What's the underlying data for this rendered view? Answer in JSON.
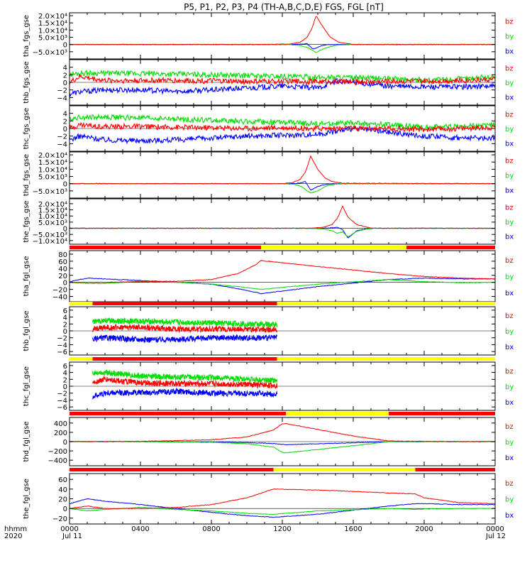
{
  "title": "P5, P1, P2, P3, P4 (TH-A,B,C,D,E) FGS, FGL [nT]",
  "footer": {
    "label_line1": "hhmm",
    "label_line2": "2020",
    "tick_labels": [
      "0000",
      "0400",
      "0800",
      "1200",
      "1600",
      "2000",
      "0000"
    ],
    "date_left": "Jul 11",
    "date_right": "Jul 12"
  },
  "colors": {
    "bx": "#0000ff",
    "by": "#00dd00",
    "bz": "#ff0000",
    "bar_red": "#ff0000",
    "bar_yellow": "#ffff00"
  },
  "chart_data": [
    {
      "id": "p1",
      "type": "line",
      "ylabel": "tha_fgs_gse",
      "ylim": [
        -10000,
        22000
      ],
      "ticks": [
        20000,
        15000,
        10000,
        5000,
        0,
        -5000
      ],
      "tick_labels": [
        "2.0×10⁴",
        "1.5×10⁴",
        "1.0×10⁴",
        "5.0×10³",
        "0",
        "−5.0×10³"
      ],
      "legend": [
        "bz",
        "by",
        "bx"
      ],
      "x_hours": [
        0,
        10.3,
        12.4,
        13.0,
        13.4,
        13.7,
        13.9,
        14.3,
        14.7,
        15.2,
        16.0,
        24
      ],
      "series": [
        {
          "name": "bz",
          "values": [
            0,
            0,
            300,
            1500,
            5000,
            12000,
            20000,
            12000,
            5000,
            1500,
            0,
            0
          ]
        },
        {
          "name": "by",
          "values": [
            0,
            0,
            -100,
            -700,
            -2000,
            -4000,
            -5500,
            -3000,
            -1500,
            -300,
            0,
            0
          ]
        },
        {
          "name": "bx",
          "values": [
            0,
            0,
            0,
            300,
            500,
            -3000,
            -2500,
            -400,
            0,
            0,
            0,
            0
          ]
        }
      ]
    },
    {
      "id": "p2",
      "type": "line",
      "ylabel": "thb_fgs_gse",
      "ylim": [
        -6,
        6
      ],
      "ticks": [
        4,
        2,
        0,
        -2,
        -4
      ],
      "tick_labels": [
        "4",
        "2",
        "0",
        "−2",
        "−4"
      ],
      "legend": [
        "bz",
        "by",
        "bx"
      ],
      "x_hours": [
        0,
        0.6,
        2,
        4,
        6,
        8,
        10,
        12,
        14,
        15,
        16,
        18,
        20,
        22,
        24
      ],
      "series": [
        {
          "name": "bz",
          "values": [
            0,
            1.5,
            0.5,
            0.5,
            0.5,
            0.4,
            0.2,
            0.3,
            0.2,
            0.2,
            0.1,
            0.3,
            0.3,
            0.5,
            0.8
          ]
        },
        {
          "name": "by",
          "values": [
            2,
            2.5,
            2.4,
            2.3,
            2.2,
            2.0,
            1.8,
            1.6,
            1.3,
            1.4,
            1.2,
            1.0,
            0.6,
            0.9,
            1.5
          ]
        },
        {
          "name": "bx",
          "values": [
            -3,
            -2.5,
            -2.0,
            -2.0,
            -2.4,
            -2.0,
            -1.5,
            -1.0,
            -1.5,
            0.3,
            0,
            -1.0,
            -1.2,
            -1.2,
            -1.0
          ]
        }
      ]
    },
    {
      "id": "p3",
      "type": "line",
      "ylabel": "thc_fgs_gse",
      "ylim": [
        -6,
        6
      ],
      "ticks": [
        4,
        2,
        0,
        -2,
        -4
      ],
      "tick_labels": [
        "4",
        "2",
        "0",
        "−2",
        "−4"
      ],
      "legend": [
        "bz",
        "by",
        "bx"
      ],
      "x_hours": [
        0,
        0.6,
        2,
        4,
        6,
        8,
        10,
        12,
        14,
        16,
        18,
        20,
        22,
        24
      ],
      "series": [
        {
          "name": "bz",
          "values": [
            0,
            1,
            0.5,
            0.5,
            0.3,
            0.2,
            0,
            0.2,
            0,
            0,
            0,
            -0.3,
            0,
            0.3
          ]
        },
        {
          "name": "by",
          "values": [
            2.5,
            3,
            3,
            2.8,
            2.5,
            2.2,
            1.8,
            1.6,
            1.2,
            1.4,
            1.0,
            0.3,
            0.6,
            1.0
          ]
        },
        {
          "name": "bx",
          "values": [
            -3,
            -2,
            -3,
            -3.2,
            -3,
            -2.5,
            -2,
            -1.8,
            -1.5,
            0,
            -1,
            -2,
            -2.5,
            -2.5
          ]
        }
      ]
    },
    {
      "id": "p4",
      "type": "line",
      "ylabel": "thd_fgs_gse",
      "ylim": [
        -10000,
        22000
      ],
      "ticks": [
        20000,
        15000,
        10000,
        5000,
        0,
        -5000
      ],
      "tick_labels": [
        "2.0×10⁴",
        "1.5×10⁴",
        "1.0×10⁴",
        "5.0×10³",
        "0",
        "−5.0×10³"
      ],
      "legend": [
        "bz",
        "by",
        "bx"
      ],
      "x_hours": [
        0,
        12.0,
        12.6,
        13.0,
        13.3,
        13.6,
        14.0,
        14.4,
        14.8,
        15.4,
        24
      ],
      "series": [
        {
          "name": "bz",
          "values": [
            0,
            0,
            800,
            3000,
            8000,
            19000,
            10000,
            4000,
            1500,
            300,
            0
          ]
        },
        {
          "name": "by",
          "values": [
            0,
            0,
            -400,
            -1500,
            -4000,
            -6500,
            -5000,
            -2000,
            -700,
            0,
            0
          ]
        },
        {
          "name": "bx",
          "values": [
            0,
            0,
            0,
            400,
            1500,
            -4500,
            -2000,
            -600,
            -100,
            0,
            0
          ]
        }
      ]
    },
    {
      "id": "p5",
      "type": "line",
      "ylabel": "the_fgs_gse",
      "ylim": [
        -13000,
        24000
      ],
      "ticks": [
        20000,
        15000,
        10000,
        5000,
        0,
        -5000,
        -10000
      ],
      "tick_labels": [
        "2.0×10⁴",
        "1.5×10⁴",
        "1.0×10⁴",
        "5.0×10³",
        "0",
        "−5.0×10³",
        "−1.0×10⁴"
      ],
      "legend": [
        "bz",
        "by",
        "bx"
      ],
      "x_hours": [
        0,
        13.5,
        14.3,
        14.8,
        15.1,
        15.4,
        15.7,
        16.2,
        16.8,
        17.2,
        24
      ],
      "series": [
        {
          "name": "bz",
          "values": [
            0,
            0,
            700,
            3000,
            8000,
            18000,
            9000,
            3000,
            800,
            0,
            0
          ]
        },
        {
          "name": "by",
          "values": [
            0,
            0,
            -500,
            -2000,
            -4000,
            -3000,
            -7000,
            -2500,
            -500,
            0,
            0
          ]
        },
        {
          "name": "bx",
          "values": [
            0,
            0,
            0,
            400,
            800,
            -1000,
            -8000,
            -2000,
            -300,
            0,
            0
          ]
        }
      ]
    },
    {
      "id": "p6",
      "type": "line",
      "ylabel": "tha_fgl_gse",
      "ylim": [
        -55,
        90
      ],
      "ticks": [
        80,
        60,
        40,
        20,
        0,
        -20,
        -40
      ],
      "tick_labels": [
        "80",
        "60",
        "40",
        "20",
        "0",
        "−20",
        "−40"
      ],
      "legend": [
        "bz",
        "by",
        "bx"
      ],
      "x_hours": [
        0,
        1,
        2,
        4,
        6,
        8,
        9.5,
        10.5,
        10.8,
        14,
        18,
        20,
        22,
        24
      ],
      "series": [
        {
          "name": "bz",
          "values": [
            0,
            0,
            0,
            2,
            3,
            8,
            25,
            50,
            62,
            45,
            25,
            17,
            12,
            10
          ]
        },
        {
          "name": "by",
          "values": [
            0,
            -3,
            -3,
            3,
            0,
            -5,
            -12,
            -18,
            -20,
            -5,
            8,
            2,
            -1,
            0
          ]
        },
        {
          "name": "bx",
          "values": [
            2,
            12,
            10,
            5,
            1,
            -5,
            -18,
            -28,
            -32,
            -12,
            8,
            12,
            10,
            10
          ]
        }
      ],
      "status_bar": {
        "segments": [
          [
            0,
            10.8,
            "red"
          ],
          [
            10.8,
            19.0,
            "yellow"
          ],
          [
            19.0,
            24,
            "red"
          ]
        ]
      }
    },
    {
      "id": "p7",
      "type": "line",
      "ylabel": "thb_fgl_gse",
      "ylim": [
        -7,
        7
      ],
      "ticks": [
        6,
        4,
        2,
        0,
        -2,
        -4,
        -6
      ],
      "tick_labels": [
        "6",
        "4",
        "2",
        "0",
        "−2",
        "−4",
        "−6"
      ],
      "legend": [
        "bz",
        "by",
        "bx"
      ],
      "x_range_hours": [
        1.3,
        11.7
      ],
      "x_hours": [
        1.3,
        2,
        4,
        6,
        8,
        10,
        11.7
      ],
      "series": [
        {
          "name": "bz",
          "values": [
            0.5,
            1,
            1,
            0.5,
            0.5,
            0.5,
            0.3
          ]
        },
        {
          "name": "by",
          "values": [
            2.5,
            3,
            2.8,
            2.5,
            2.3,
            2.0,
            1.8
          ]
        },
        {
          "name": "bx",
          "values": [
            -2.5,
            -2.0,
            -2.5,
            -2.5,
            -2.0,
            -2.0,
            -2.0
          ]
        }
      ],
      "status_bar": {
        "segments": [
          [
            0,
            1.3,
            "yellow"
          ],
          [
            1.3,
            11.7,
            "red"
          ],
          [
            11.7,
            24,
            "yellow"
          ]
        ]
      }
    },
    {
      "id": "p8",
      "type": "line",
      "ylabel": "thc_fgl_gse",
      "ylim": [
        -7,
        7
      ],
      "ticks": [
        6,
        4,
        2,
        0,
        -2,
        -4,
        -6
      ],
      "tick_labels": [
        "6",
        "4",
        "2",
        "0",
        "−2",
        "−4",
        "−6"
      ],
      "legend": [
        "bz",
        "by",
        "bx"
      ],
      "x_range_hours": [
        1.3,
        11.7
      ],
      "x_hours": [
        1.3,
        2,
        4,
        6,
        8,
        10,
        11.7
      ],
      "series": [
        {
          "name": "bz",
          "values": [
            1,
            2,
            1,
            0.8,
            0.7,
            0.5,
            0.2
          ]
        },
        {
          "name": "by",
          "values": [
            4,
            4,
            3,
            2.7,
            2.5,
            2.0,
            1.5
          ]
        },
        {
          "name": "bx",
          "values": [
            -3,
            -2,
            -1.8,
            -1.5,
            -2.0,
            -2.2,
            -2.2
          ]
        }
      ],
      "status_bar": {
        "segments": [
          [
            0,
            1.3,
            "yellow"
          ],
          [
            1.3,
            11.7,
            "red"
          ],
          [
            11.7,
            24,
            "yellow"
          ]
        ]
      }
    },
    {
      "id": "p9",
      "type": "line",
      "ylabel": "thd_fgl_gse",
      "ylim": [
        -520,
        520
      ],
      "ticks": [
        400,
        200,
        0,
        -200,
        -400
      ],
      "tick_labels": [
        "400",
        "200",
        "0",
        "−200",
        "−400"
      ],
      "legend": [
        "bz",
        "by",
        "bx"
      ],
      "x_hours": [
        0,
        4,
        8,
        10,
        11.5,
        12.0,
        12.2,
        16,
        18,
        20,
        24
      ],
      "series": [
        {
          "name": "bz",
          "values": [
            0,
            5,
            40,
            100,
            250,
            380,
            390,
            120,
            15,
            5,
            0
          ]
        },
        {
          "name": "by",
          "values": [
            0,
            0,
            -15,
            -45,
            -120,
            -230,
            -240,
            -90,
            0,
            0,
            0
          ]
        },
        {
          "name": "bx",
          "values": [
            0,
            0,
            -8,
            -20,
            -40,
            -60,
            -65,
            -25,
            0,
            0,
            0
          ]
        }
      ],
      "status_bar": {
        "segments": [
          [
            0,
            12.2,
            "red"
          ],
          [
            12.2,
            18.0,
            "yellow"
          ],
          [
            18.0,
            24,
            "red"
          ]
        ]
      }
    },
    {
      "id": "p10",
      "type": "line",
      "ylabel": "the_fgl_gse",
      "ylim": [
        -32,
        72
      ],
      "ticks": [
        60,
        40,
        20,
        0,
        -20
      ],
      "tick_labels": [
        "60",
        "40",
        "20",
        "0",
        "−20"
      ],
      "legend": [
        "bz",
        "by",
        "bx"
      ],
      "x_hours": [
        0,
        1,
        2,
        4,
        6,
        8,
        10,
        11.5,
        14,
        18,
        19.5,
        20,
        22,
        24
      ],
      "series": [
        {
          "name": "bz",
          "values": [
            0,
            5,
            0,
            0,
            2,
            8,
            22,
            40,
            38,
            32,
            30,
            22,
            12,
            10
          ]
        },
        {
          "name": "by",
          "values": [
            0,
            -5,
            -2,
            2,
            -2,
            -5,
            -10,
            -12,
            -5,
            0,
            -2,
            -1,
            0,
            0
          ]
        },
        {
          "name": "bx",
          "values": [
            10,
            20,
            15,
            8,
            0,
            -8,
            -15,
            -18,
            -12,
            5,
            10,
            10,
            8,
            8
          ]
        }
      ],
      "status_bar": {
        "segments": [
          [
            0,
            11.5,
            "red"
          ],
          [
            11.5,
            19.5,
            "yellow"
          ],
          [
            19.5,
            24,
            "red"
          ]
        ]
      }
    }
  ]
}
